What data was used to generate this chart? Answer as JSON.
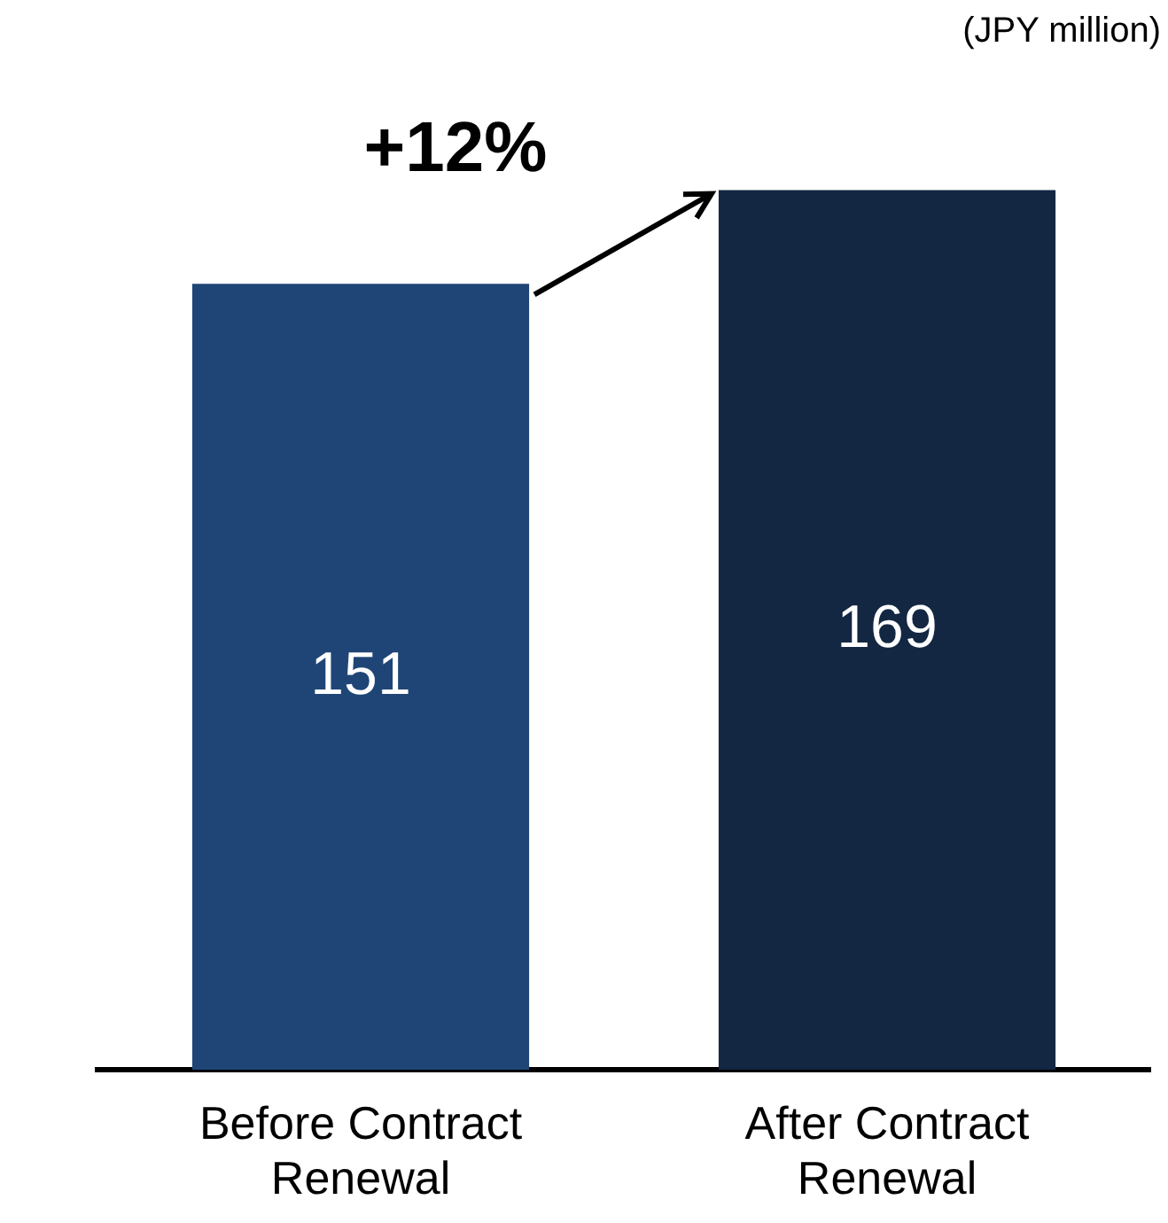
{
  "chart_data": {
    "type": "bar",
    "categories": [
      "Before Contract Renewal",
      "After Contract Renewal"
    ],
    "values": [
      151,
      169
    ],
    "colors": [
      "#1f4576",
      "#132743"
    ],
    "data_labels": true,
    "ylabel": "(JPY million)",
    "annotations": [
      "+12%"
    ],
    "grid": false,
    "legend": false
  }
}
